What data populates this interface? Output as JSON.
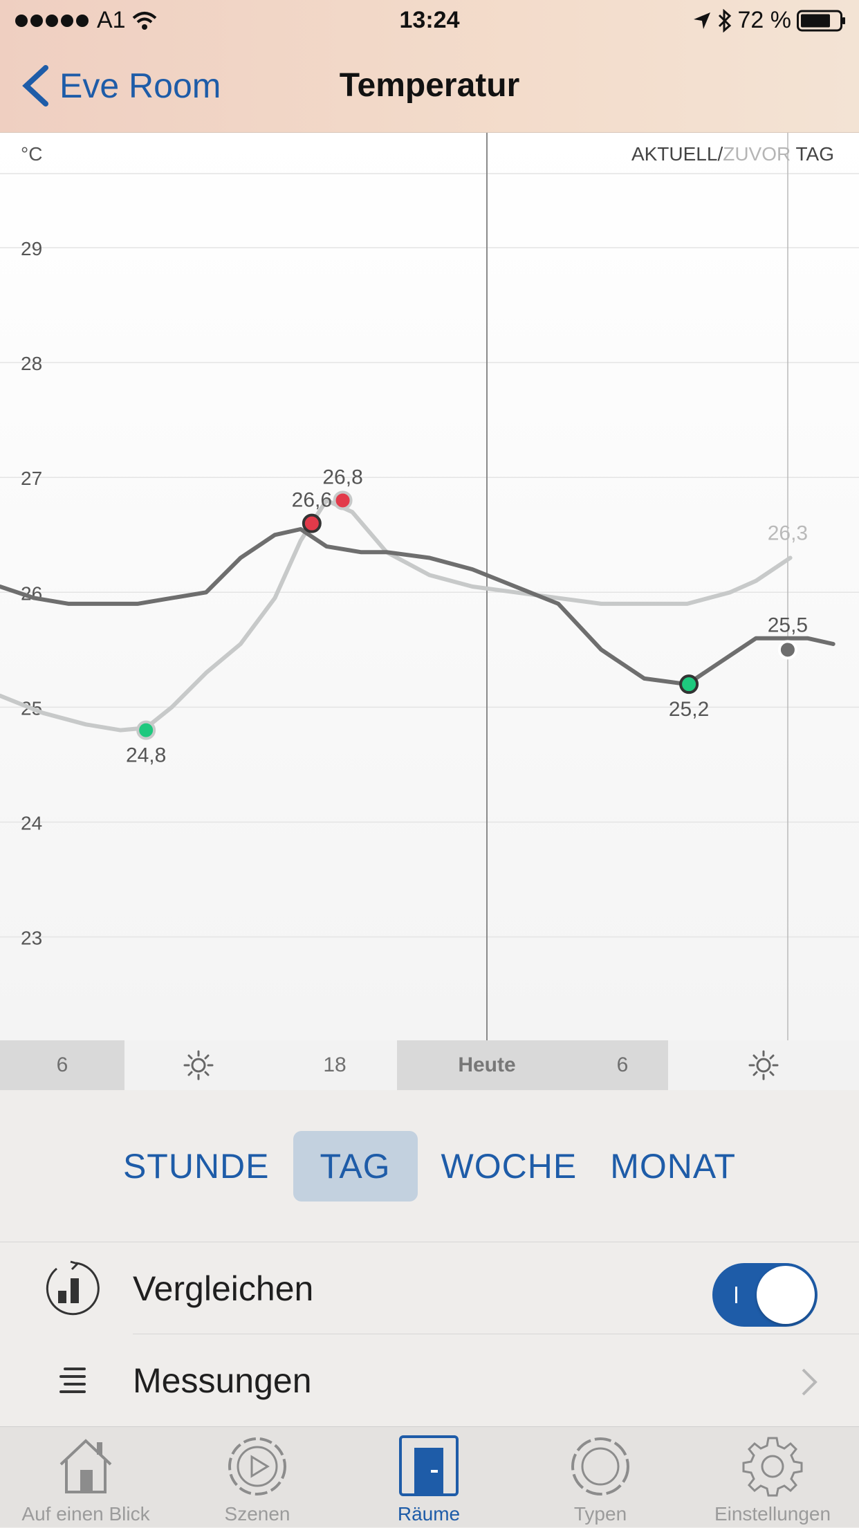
{
  "status_bar": {
    "carrier": "A1",
    "time": "13:24",
    "battery": "72 %"
  },
  "nav": {
    "back_label": "Eve Room",
    "title": "Temperatur"
  },
  "chart_data": {
    "type": "line",
    "unit_label": "°C",
    "legend": {
      "current": "AKTUELL",
      "separator": "/",
      "previous": "ZUVOR",
      "period": "TAG"
    },
    "y_ticks": [
      29,
      28,
      27,
      26,
      25,
      24,
      23
    ],
    "ylim": [
      22.1,
      30.0
    ],
    "x_ticks": [
      "6",
      "18",
      "Heute",
      "6"
    ],
    "series": [
      {
        "role": "current",
        "color": "#6e6e6e",
        "x": [
          0,
          0.04,
          0.08,
          0.12,
          0.16,
          0.2,
          0.24,
          0.28,
          0.32,
          0.35,
          0.38,
          0.42,
          0.45,
          0.5,
          0.55,
          0.6,
          0.65,
          0.7,
          0.75,
          0.8,
          0.85,
          0.88,
          0.91,
          0.94,
          0.97
        ],
        "values": [
          26.05,
          25.95,
          25.9,
          25.9,
          25.9,
          25.95,
          26.0,
          26.3,
          26.5,
          26.55,
          26.4,
          26.35,
          26.35,
          26.3,
          26.2,
          26.05,
          25.9,
          25.5,
          25.25,
          25.2,
          25.45,
          25.6,
          25.6,
          25.6,
          25.55
        ]
      },
      {
        "role": "previous",
        "color": "#c7c9c9",
        "x": [
          0,
          0.05,
          0.1,
          0.14,
          0.17,
          0.2,
          0.24,
          0.28,
          0.32,
          0.35,
          0.38,
          0.41,
          0.45,
          0.5,
          0.55,
          0.6,
          0.65,
          0.7,
          0.75,
          0.8,
          0.85,
          0.88,
          0.92
        ],
        "values": [
          25.1,
          24.95,
          24.85,
          24.8,
          24.82,
          25.0,
          25.3,
          25.55,
          25.95,
          26.45,
          26.8,
          26.7,
          26.35,
          26.15,
          26.05,
          26.0,
          25.95,
          25.9,
          25.9,
          25.9,
          26.0,
          26.1,
          26.3
        ]
      }
    ],
    "markers": [
      {
        "x": 0.17,
        "value": 24.8,
        "label": "24,8",
        "kind": "min",
        "series": "previous"
      },
      {
        "x": 0.363,
        "value": 26.6,
        "label": "26,6",
        "kind": "max",
        "series": "current"
      },
      {
        "x": 0.399,
        "value": 26.8,
        "label": "26,8",
        "kind": "max",
        "series": "previous"
      },
      {
        "x": 0.802,
        "value": 25.2,
        "label": "25,2",
        "kind": "min",
        "series": "current"
      },
      {
        "x": 0.917,
        "value": 25.5,
        "label": "25,5",
        "kind": "end",
        "series": "current"
      },
      {
        "x": 0.917,
        "value": 26.3,
        "label": "26,3",
        "kind": "end",
        "series": "previous"
      }
    ]
  },
  "time_bar": [
    "6",
    "sun",
    "18",
    "Heute",
    "6",
    "sun"
  ],
  "range_buttons": [
    {
      "label": "STUNDE",
      "active": false
    },
    {
      "label": "TAG",
      "active": true
    },
    {
      "label": "WOCHE",
      "active": false
    },
    {
      "label": "MONAT",
      "active": false
    }
  ],
  "rows": {
    "compare_label": "Vergleichen",
    "compare_on": true,
    "measurements_label": "Messungen"
  },
  "tabs": [
    {
      "label": "Auf einen Blick",
      "icon": "house-icon"
    },
    {
      "label": "Szenen",
      "icon": "play-icon"
    },
    {
      "label": "Räume",
      "icon": "door-icon",
      "active": true
    },
    {
      "label": "Typen",
      "icon": "circle-icon"
    },
    {
      "label": "Einstellungen",
      "icon": "gear-icon"
    }
  ],
  "colors": {
    "accent": "#1e5ca8",
    "min_marker": "#1ec87e",
    "max_marker": "#e23a4a"
  }
}
